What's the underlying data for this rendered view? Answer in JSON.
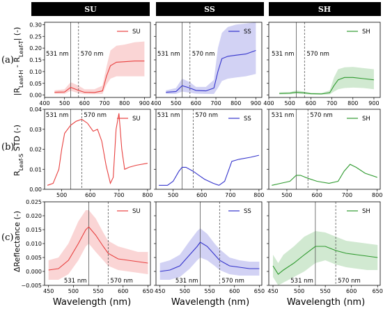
{
  "columns": [
    "SU",
    "SS",
    "SH"
  ],
  "rows": [
    "(a)",
    "(b)",
    "(c)"
  ],
  "y_labels": {
    "a": "|Rₗₑₐₒ-H - Rₗₑₐₒ-T| (-)",
    "b": "Rₗₑₐₒ-S STD (-)",
    "c": "ΔReflectance (-)"
  },
  "x_label": "Wavelength (nm)",
  "annotations": {
    "line1": "531 nm",
    "line2": "570 nm"
  },
  "colors": {
    "SU": "#e8403f",
    "SS": "#3333cc",
    "SH": "#2e9a2e"
  },
  "chart_data": [
    {
      "type": "line",
      "row": "a",
      "panel": "SU",
      "legend": "SU",
      "xlim": [
        400,
        930
      ],
      "ylim": [
        -0.01,
        0.31
      ],
      "xticks": [
        "400",
        "500",
        "600",
        "700",
        "800",
        "900"
      ],
      "yticks": [
        "0.00",
        "0.05",
        "0.10",
        "0.15",
        "0.20",
        "0.25",
        "0.30"
      ],
      "vlines": [
        531,
        570
      ],
      "mean": [
        [
          450,
          0.012
        ],
        [
          500,
          0.013
        ],
        [
          531,
          0.033
        ],
        [
          570,
          0.02
        ],
        [
          600,
          0.012
        ],
        [
          650,
          0.011
        ],
        [
          690,
          0.018
        ],
        [
          710,
          0.08
        ],
        [
          730,
          0.125
        ],
        [
          760,
          0.14
        ],
        [
          800,
          0.142
        ],
        [
          850,
          0.145
        ],
        [
          900,
          0.145
        ]
      ],
      "upper": [
        [
          450,
          0.02
        ],
        [
          500,
          0.025
        ],
        [
          531,
          0.055
        ],
        [
          570,
          0.04
        ],
        [
          600,
          0.025
        ],
        [
          650,
          0.025
        ],
        [
          690,
          0.04
        ],
        [
          710,
          0.12
        ],
        [
          730,
          0.19
        ],
        [
          760,
          0.21
        ],
        [
          800,
          0.215
        ],
        [
          850,
          0.225
        ],
        [
          900,
          0.228
        ]
      ],
      "lower": [
        [
          450,
          0.005
        ],
        [
          500,
          0.005
        ],
        [
          531,
          0.018
        ],
        [
          570,
          0.008
        ],
        [
          600,
          0.004
        ],
        [
          650,
          0.004
        ],
        [
          690,
          0.005
        ],
        [
          710,
          0.045
        ],
        [
          730,
          0.07
        ],
        [
          760,
          0.08
        ],
        [
          800,
          0.08
        ],
        [
          850,
          0.08
        ],
        [
          900,
          0.08
        ]
      ]
    },
    {
      "type": "line",
      "row": "a",
      "panel": "SS",
      "legend": "SS",
      "xlim": [
        400,
        930
      ],
      "ylim": [
        -0.01,
        0.31
      ],
      "xticks": [
        "400",
        "500",
        "600",
        "700",
        "800",
        "900"
      ],
      "yticks": [],
      "vlines": [
        531,
        570
      ],
      "mean": [
        [
          450,
          0.012
        ],
        [
          500,
          0.015
        ],
        [
          531,
          0.04
        ],
        [
          570,
          0.03
        ],
        [
          600,
          0.02
        ],
        [
          650,
          0.018
        ],
        [
          690,
          0.03
        ],
        [
          710,
          0.1
        ],
        [
          730,
          0.155
        ],
        [
          760,
          0.165
        ],
        [
          800,
          0.17
        ],
        [
          850,
          0.175
        ],
        [
          900,
          0.19
        ]
      ],
      "upper": [
        [
          450,
          0.02
        ],
        [
          500,
          0.03
        ],
        [
          531,
          0.07
        ],
        [
          570,
          0.055
        ],
        [
          600,
          0.035
        ],
        [
          650,
          0.035
        ],
        [
          690,
          0.065
        ],
        [
          710,
          0.2
        ],
        [
          730,
          0.265
        ],
        [
          760,
          0.29
        ],
        [
          800,
          0.3
        ],
        [
          850,
          0.305
        ],
        [
          900,
          0.31
        ]
      ],
      "lower": [
        [
          450,
          0.005
        ],
        [
          500,
          0.005
        ],
        [
          531,
          0.015
        ],
        [
          570,
          0.01
        ],
        [
          600,
          0.006
        ],
        [
          650,
          0.005
        ],
        [
          690,
          0.005
        ],
        [
          710,
          0.03
        ],
        [
          730,
          0.06
        ],
        [
          760,
          0.07
        ],
        [
          800,
          0.075
        ],
        [
          850,
          0.08
        ],
        [
          900,
          0.09
        ]
      ]
    },
    {
      "type": "line",
      "row": "a",
      "panel": "SH",
      "legend": "SH",
      "xlim": [
        400,
        930
      ],
      "ylim": [
        -0.01,
        0.31
      ],
      "xticks": [
        "400",
        "500",
        "600",
        "700",
        "800",
        "900"
      ],
      "yticks": [],
      "vlines": [
        531,
        570
      ],
      "mean": [
        [
          450,
          0.007
        ],
        [
          500,
          0.008
        ],
        [
          531,
          0.012
        ],
        [
          570,
          0.009
        ],
        [
          600,
          0.006
        ],
        [
          650,
          0.005
        ],
        [
          690,
          0.01
        ],
        [
          710,
          0.04
        ],
        [
          730,
          0.065
        ],
        [
          760,
          0.075
        ],
        [
          800,
          0.075
        ],
        [
          850,
          0.07
        ],
        [
          900,
          0.065
        ]
      ],
      "upper": [
        [
          450,
          0.012
        ],
        [
          500,
          0.013
        ],
        [
          531,
          0.02
        ],
        [
          570,
          0.015
        ],
        [
          600,
          0.01
        ],
        [
          650,
          0.009
        ],
        [
          690,
          0.02
        ],
        [
          710,
          0.075
        ],
        [
          730,
          0.11
        ],
        [
          760,
          0.118
        ],
        [
          800,
          0.12
        ],
        [
          850,
          0.115
        ],
        [
          900,
          0.11
        ]
      ],
      "lower": [
        [
          450,
          0.003
        ],
        [
          500,
          0.004
        ],
        [
          531,
          0.006
        ],
        [
          570,
          0.004
        ],
        [
          600,
          0.002
        ],
        [
          650,
          0.002
        ],
        [
          690,
          0.003
        ],
        [
          710,
          0.015
        ],
        [
          730,
          0.025
        ],
        [
          760,
          0.03
        ],
        [
          800,
          0.032
        ],
        [
          850,
          0.03
        ],
        [
          900,
          0.025
        ]
      ]
    },
    {
      "type": "line",
      "row": "b",
      "panel": "SU",
      "legend": "SU",
      "xlim": [
        440,
        810
      ],
      "ylim": [
        0,
        0.04
      ],
      "xticks": [
        "500",
        "600",
        "700",
        "800"
      ],
      "yticks": [
        "0.00",
        "0.01",
        "0.02",
        "0.03",
        "0.04"
      ],
      "vlines": [
        531,
        570
      ],
      "mean": [
        [
          450,
          0.002
        ],
        [
          470,
          0.003
        ],
        [
          490,
          0.01
        ],
        [
          500,
          0.02
        ],
        [
          510,
          0.028
        ],
        [
          531,
          0.032
        ],
        [
          550,
          0.034
        ],
        [
          570,
          0.035
        ],
        [
          590,
          0.033
        ],
        [
          610,
          0.029
        ],
        [
          625,
          0.03
        ],
        [
          640,
          0.024
        ],
        [
          655,
          0.012
        ],
        [
          670,
          0.003
        ],
        [
          680,
          0.006
        ],
        [
          690,
          0.03
        ],
        [
          700,
          0.038
        ],
        [
          710,
          0.02
        ],
        [
          720,
          0.01
        ],
        [
          735,
          0.011
        ],
        [
          760,
          0.012
        ],
        [
          800,
          0.013
        ]
      ]
    },
    {
      "type": "line",
      "row": "b",
      "panel": "SS",
      "legend": "SS",
      "xlim": [
        440,
        810
      ],
      "ylim": [
        0,
        0.04
      ],
      "xticks": [
        "500",
        "600",
        "700",
        "800"
      ],
      "yticks": [],
      "vlines": [
        531,
        570
      ],
      "mean": [
        [
          450,
          0.002
        ],
        [
          480,
          0.002
        ],
        [
          500,
          0.004
        ],
        [
          520,
          0.009
        ],
        [
          531,
          0.011
        ],
        [
          545,
          0.011
        ],
        [
          570,
          0.009
        ],
        [
          590,
          0.007
        ],
        [
          610,
          0.005
        ],
        [
          640,
          0.003
        ],
        [
          660,
          0.002
        ],
        [
          680,
          0.004
        ],
        [
          695,
          0.01
        ],
        [
          705,
          0.014
        ],
        [
          730,
          0.015
        ],
        [
          770,
          0.016
        ],
        [
          800,
          0.017
        ]
      ]
    },
    {
      "type": "line",
      "row": "b",
      "panel": "SH",
      "legend": "SH",
      "xlim": [
        440,
        810
      ],
      "ylim": [
        0,
        0.04
      ],
      "xticks": [
        "500",
        "600",
        "700",
        "800"
      ],
      "yticks": [],
      "vlines": [
        531,
        570
      ],
      "mean": [
        [
          450,
          0.002
        ],
        [
          480,
          0.003
        ],
        [
          510,
          0.004
        ],
        [
          531,
          0.007
        ],
        [
          545,
          0.007
        ],
        [
          570,
          0.0055
        ],
        [
          600,
          0.004
        ],
        [
          640,
          0.003
        ],
        [
          670,
          0.004
        ],
        [
          690,
          0.009
        ],
        [
          710,
          0.0125
        ],
        [
          730,
          0.011
        ],
        [
          760,
          0.008
        ],
        [
          800,
          0.006
        ]
      ]
    },
    {
      "type": "line",
      "row": "c",
      "panel": "SU",
      "legend": "SU",
      "xlim": [
        442,
        655
      ],
      "ylim": [
        -0.005,
        0.025
      ],
      "xticks": [
        "450",
        "500",
        "550",
        "600",
        "650"
      ],
      "yticks": [
        "−0.005",
        "0.000",
        "0.005",
        "0.010",
        "0.015",
        "0.020",
        "0.025"
      ],
      "vlines": [
        531,
        570
      ],
      "mean": [
        [
          450,
          0.0005
        ],
        [
          470,
          0.001
        ],
        [
          490,
          0.004
        ],
        [
          510,
          0.01
        ],
        [
          525,
          0.015
        ],
        [
          531,
          0.016
        ],
        [
          545,
          0.013
        ],
        [
          560,
          0.009
        ],
        [
          570,
          0.0065
        ],
        [
          590,
          0.0045
        ],
        [
          610,
          0.004
        ],
        [
          630,
          0.0035
        ],
        [
          650,
          0.003
        ]
      ],
      "upper": [
        [
          450,
          0.004
        ],
        [
          470,
          0.005
        ],
        [
          490,
          0.01
        ],
        [
          510,
          0.018
        ],
        [
          525,
          0.022
        ],
        [
          531,
          0.022
        ],
        [
          545,
          0.019
        ],
        [
          560,
          0.014
        ],
        [
          570,
          0.011
        ],
        [
          590,
          0.009
        ],
        [
          610,
          0.008
        ],
        [
          630,
          0.007
        ],
        [
          650,
          0.007
        ]
      ],
      "lower": [
        [
          450,
          -0.003
        ],
        [
          470,
          -0.003
        ],
        [
          490,
          -0.001
        ],
        [
          510,
          0.004
        ],
        [
          525,
          0.009
        ],
        [
          531,
          0.01
        ],
        [
          545,
          0.007
        ],
        [
          560,
          0.004
        ],
        [
          570,
          0.002
        ],
        [
          590,
          0.0005
        ],
        [
          610,
          0.0
        ],
        [
          630,
          -0.0005
        ],
        [
          650,
          -0.001
        ]
      ]
    },
    {
      "type": "line",
      "row": "c",
      "panel": "SS",
      "legend": "SS",
      "xlim": [
        442,
        655
      ],
      "ylim": [
        -0.005,
        0.025
      ],
      "xticks": [
        "450",
        "500",
        "550",
        "600",
        "650"
      ],
      "yticks": [],
      "vlines": [
        531,
        570
      ],
      "mean": [
        [
          450,
          0.0
        ],
        [
          470,
          0.0005
        ],
        [
          490,
          0.002
        ],
        [
          510,
          0.006
        ],
        [
          525,
          0.009
        ],
        [
          531,
          0.0105
        ],
        [
          545,
          0.009
        ],
        [
          560,
          0.006
        ],
        [
          570,
          0.004
        ],
        [
          590,
          0.002
        ],
        [
          610,
          0.0015
        ],
        [
          630,
          0.001
        ],
        [
          650,
          0.001
        ]
      ],
      "upper": [
        [
          450,
          0.003
        ],
        [
          470,
          0.004
        ],
        [
          490,
          0.006
        ],
        [
          510,
          0.011
        ],
        [
          525,
          0.0145
        ],
        [
          531,
          0.0155
        ],
        [
          545,
          0.0135
        ],
        [
          560,
          0.01
        ],
        [
          570,
          0.008
        ],
        [
          590,
          0.005
        ],
        [
          610,
          0.004
        ],
        [
          630,
          0.0035
        ],
        [
          650,
          0.0035
        ]
      ],
      "lower": [
        [
          450,
          -0.003
        ],
        [
          470,
          -0.003
        ],
        [
          490,
          -0.002
        ],
        [
          510,
          0.001
        ],
        [
          525,
          0.004
        ],
        [
          531,
          0.005
        ],
        [
          545,
          0.004
        ],
        [
          560,
          0.002
        ],
        [
          570,
          0.0005
        ],
        [
          590,
          -0.001
        ],
        [
          610,
          -0.0015
        ],
        [
          630,
          -0.0015
        ],
        [
          650,
          -0.0015
        ]
      ]
    },
    {
      "type": "line",
      "row": "c",
      "panel": "SH",
      "legend": "SH",
      "xlim": [
        442,
        655
      ],
      "ylim": [
        -0.005,
        0.025
      ],
      "xticks": [
        "450",
        "500",
        "550",
        "600",
        "650"
      ],
      "yticks": [],
      "vlines": [
        531,
        570
      ],
      "mean": [
        [
          450,
          0.002
        ],
        [
          460,
          -0.001
        ],
        [
          470,
          0.0005
        ],
        [
          490,
          0.003
        ],
        [
          510,
          0.006
        ],
        [
          531,
          0.009
        ],
        [
          550,
          0.009
        ],
        [
          570,
          0.0075
        ],
        [
          590,
          0.0065
        ],
        [
          610,
          0.006
        ],
        [
          630,
          0.0055
        ],
        [
          650,
          0.005
        ]
      ],
      "upper": [
        [
          450,
          0.006
        ],
        [
          460,
          0.003
        ],
        [
          470,
          0.006
        ],
        [
          490,
          0.009
        ],
        [
          510,
          0.0125
        ],
        [
          531,
          0.0145
        ],
        [
          550,
          0.014
        ],
        [
          570,
          0.0125
        ],
        [
          590,
          0.011
        ],
        [
          610,
          0.0105
        ],
        [
          630,
          0.01
        ],
        [
          650,
          0.0095
        ]
      ],
      "lower": [
        [
          450,
          -0.002
        ],
        [
          460,
          -0.005
        ],
        [
          470,
          -0.004
        ],
        [
          490,
          -0.002
        ],
        [
          510,
          0.0
        ],
        [
          531,
          0.003
        ],
        [
          550,
          0.004
        ],
        [
          570,
          0.0025
        ],
        [
          590,
          0.0015
        ],
        [
          610,
          0.001
        ],
        [
          630,
          0.0005
        ],
        [
          650,
          0.0005
        ]
      ]
    }
  ]
}
